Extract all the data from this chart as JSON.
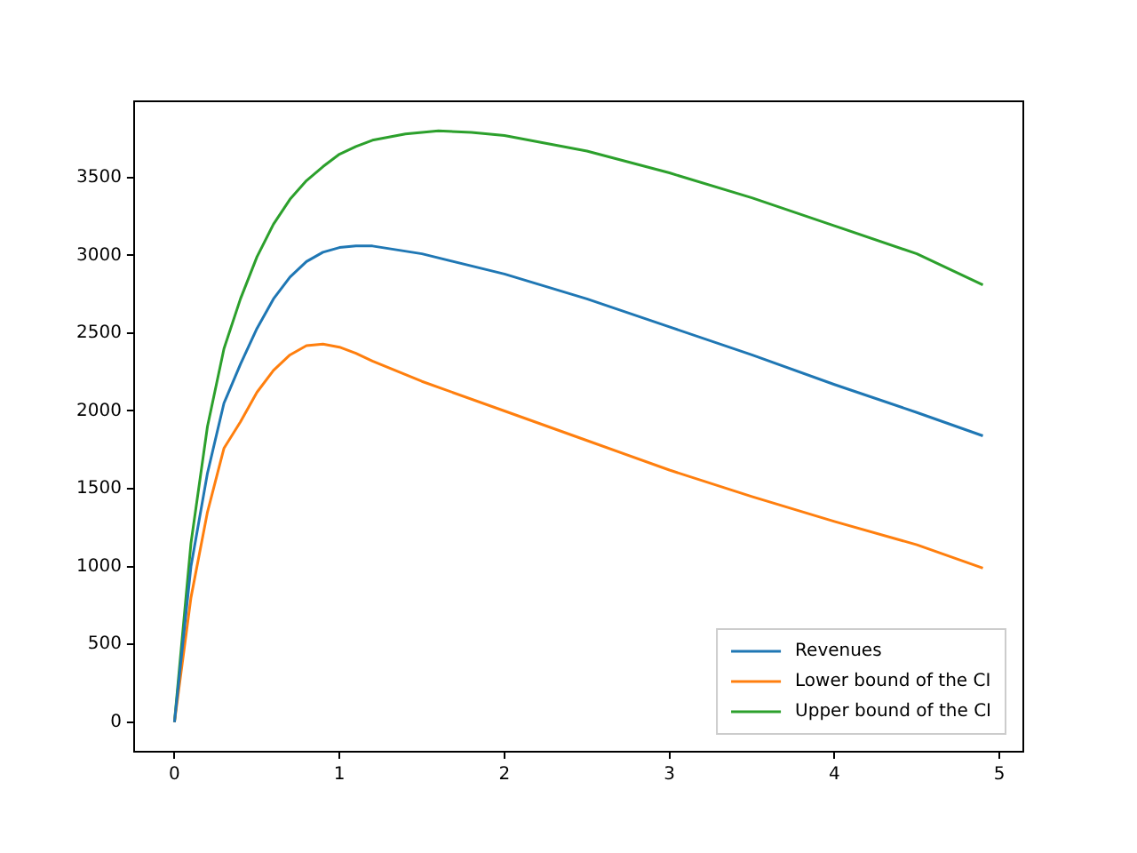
{
  "chart_data": {
    "type": "line",
    "xlim": [
      -0.245,
      5.145
    ],
    "xticks": [
      0,
      1,
      2,
      3,
      4,
      5
    ],
    "ylim": [
      -190,
      3990
    ],
    "yticks": [
      0,
      500,
      1000,
      1500,
      2000,
      2500,
      3000,
      3500
    ],
    "grid": false,
    "legend": "bottom right",
    "marker": "none",
    "line_style": "solid",
    "series": [
      {
        "name": "Revenues",
        "color": "#1f77b4",
        "x": [
          0,
          0.1,
          0.2,
          0.3,
          0.4,
          0.5,
          0.6,
          0.7,
          0.8,
          0.9,
          1.0,
          1.1,
          1.2,
          1.5,
          2.0,
          2.5,
          3.0,
          3.5,
          4.0,
          4.5,
          4.9
        ],
        "values": [
          0,
          1000,
          1600,
          2050,
          2300,
          2530,
          2720,
          2860,
          2960,
          3020,
          3050,
          3060,
          3060,
          3010,
          2880,
          2720,
          2540,
          2360,
          2170,
          1990,
          1840
        ]
      },
      {
        "name": "Lower bound of the CI",
        "color": "#ff7f0e",
        "x": [
          0,
          0.1,
          0.2,
          0.3,
          0.4,
          0.5,
          0.6,
          0.7,
          0.8,
          0.9,
          1.0,
          1.1,
          1.2,
          1.5,
          2.0,
          2.5,
          3.0,
          3.5,
          4.0,
          4.5,
          4.9
        ],
        "values": [
          0,
          800,
          1350,
          1760,
          1930,
          2120,
          2260,
          2360,
          2420,
          2430,
          2410,
          2370,
          2320,
          2190,
          2000,
          1810,
          1620,
          1450,
          1290,
          1140,
          990
        ]
      },
      {
        "name": "Upper bound of the CI",
        "color": "#2ca02c",
        "x": [
          0,
          0.1,
          0.2,
          0.3,
          0.4,
          0.5,
          0.6,
          0.7,
          0.8,
          0.9,
          1.0,
          1.1,
          1.2,
          1.4,
          1.6,
          1.8,
          2.0,
          2.5,
          3.0,
          3.5,
          4.0,
          4.5,
          4.9
        ],
        "values": [
          0,
          1150,
          1900,
          2400,
          2720,
          2990,
          3200,
          3360,
          3480,
          3570,
          3650,
          3700,
          3740,
          3780,
          3800,
          3790,
          3770,
          3670,
          3530,
          3370,
          3190,
          3010,
          2810
        ]
      }
    ]
  }
}
